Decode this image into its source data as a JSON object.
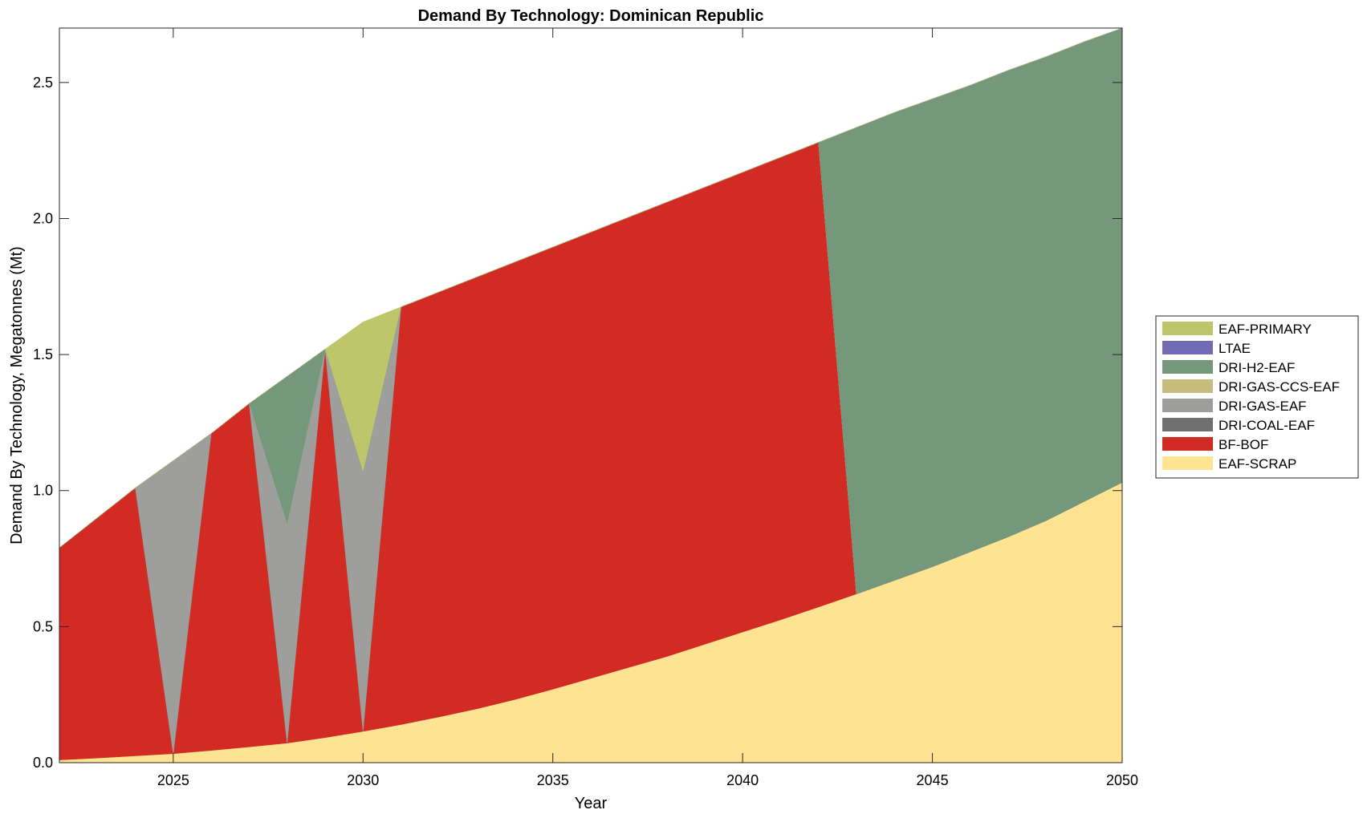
{
  "chart_data": {
    "type": "area",
    "stacked": true,
    "title": "Demand By Technology: Dominican Republic",
    "xlabel": "Year",
    "ylabel": "Demand By Technology, Megatonnes (Mt)",
    "xlim": [
      2022,
      2050
    ],
    "ylim": [
      0,
      2.7
    ],
    "xticks": [
      2025,
      2030,
      2035,
      2040,
      2045,
      2050
    ],
    "yticks": [
      0,
      0.5,
      1,
      1.5,
      2,
      2.5
    ],
    "ytick_labels": [
      "0.0",
      "0.5",
      "1.0",
      "1.5",
      "2.0",
      "2.5"
    ],
    "grid": false,
    "legend_position": "right",
    "x": [
      2022,
      2023,
      2024,
      2025,
      2026,
      2027,
      2028,
      2029,
      2030,
      2031,
      2032,
      2033,
      2034,
      2035,
      2036,
      2037,
      2038,
      2039,
      2040,
      2041,
      2042,
      2043,
      2044,
      2045,
      2046,
      2047,
      2048,
      2049,
      2050
    ],
    "series": [
      {
        "name": "EAF-SCRAP",
        "color": "#fde392",
        "values": [
          0.01,
          0.017,
          0.025,
          0.033,
          0.045,
          0.058,
          0.072,
          0.092,
          0.115,
          0.14,
          0.168,
          0.198,
          0.232,
          0.27,
          0.31,
          0.35,
          0.39,
          0.435,
          0.48,
          0.525,
          0.572,
          0.62,
          0.67,
          0.72,
          0.775,
          0.83,
          0.89,
          0.96,
          1.03
        ]
      },
      {
        "name": "BF-BOF",
        "color": "#d22b23",
        "values": [
          0.78,
          0.883,
          0.985,
          0,
          1.165,
          1.262,
          0,
          1.428,
          0,
          1.535,
          1.562,
          1.587,
          1.608,
          1.625,
          1.64,
          1.655,
          1.67,
          1.68,
          1.69,
          1.7,
          1.708,
          0,
          0,
          0,
          0,
          0,
          0,
          0,
          0
        ]
      },
      {
        "name": "DRI-COAL-EAF",
        "color": "#6f6f6f",
        "values": [
          0,
          0,
          0,
          0,
          0,
          0,
          0,
          0,
          0,
          0,
          0,
          0,
          0,
          0,
          0,
          0,
          0,
          0,
          0,
          0,
          0,
          0,
          0,
          0,
          0,
          0,
          0,
          0,
          0
        ]
      },
      {
        "name": "DRI-GAS-EAF",
        "color": "#9e9e9c",
        "values": [
          0,
          0,
          0,
          1.077,
          0,
          0,
          0.808,
          0,
          0.955,
          0,
          0,
          0,
          0,
          0,
          0,
          0,
          0,
          0,
          0,
          0,
          0,
          0,
          0,
          0,
          0,
          0,
          0,
          0,
          0
        ]
      },
      {
        "name": "DRI-GAS-CCS-EAF",
        "color": "#c5bc7d",
        "values": [
          0,
          0,
          0,
          0,
          0,
          0,
          0,
          0,
          0,
          0,
          0,
          0,
          0,
          0,
          0,
          0,
          0,
          0,
          0,
          0,
          0,
          0,
          0,
          0,
          0,
          0,
          0,
          0,
          0
        ]
      },
      {
        "name": "DRI-H2-EAF",
        "color": "#75977c",
        "values": [
          0,
          0,
          0,
          0,
          0,
          0,
          0.54,
          0,
          0,
          0,
          0,
          0,
          0,
          0,
          0,
          0,
          0,
          0,
          0,
          0,
          0,
          1.715,
          1.72,
          1.72,
          1.715,
          1.715,
          1.705,
          1.69,
          1.67
        ]
      },
      {
        "name": "LTAE",
        "color": "#7369b5",
        "values": [
          0,
          0,
          0,
          0,
          0,
          0,
          0,
          0,
          0,
          0,
          0,
          0,
          0,
          0,
          0,
          0,
          0,
          0,
          0,
          0,
          0,
          0,
          0,
          0,
          0,
          0,
          0,
          0,
          0
        ]
      },
      {
        "name": "EAF-PRIMARY",
        "color": "#bdc66b",
        "values": [
          0,
          0,
          0,
          0,
          0,
          0,
          0,
          0,
          0.55,
          0,
          0,
          0,
          0,
          0,
          0,
          0,
          0,
          0,
          0,
          0,
          0,
          0,
          0,
          0,
          0,
          0,
          0,
          0,
          0
        ]
      }
    ],
    "legend_order": [
      "EAF-PRIMARY",
      "LTAE",
      "DRI-H2-EAF",
      "DRI-GAS-CCS-EAF",
      "DRI-GAS-EAF",
      "DRI-COAL-EAF",
      "BF-BOF",
      "EAF-SCRAP"
    ]
  }
}
